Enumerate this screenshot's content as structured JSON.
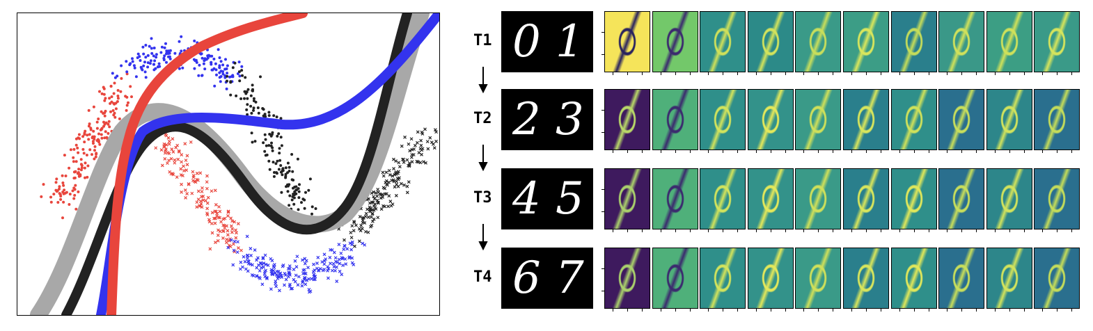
{
  "tasks": [
    {
      "label": "T1",
      "digits": [
        "0",
        "1"
      ],
      "filters": [
        {
          "bg": "#f5e45a",
          "fg": "#2a235e"
        },
        {
          "bg": "#73c86a",
          "fg": "#3b2a6e"
        },
        {
          "bg": "#2f8f8a",
          "fg": "#cfe05a"
        },
        {
          "bg": "#2c8a88",
          "fg": "#d2e35c"
        },
        {
          "bg": "#3a9a88",
          "fg": "#c8de5b"
        },
        {
          "bg": "#3c9d86",
          "fg": "#d9e65c"
        },
        {
          "bg": "#2a7f8c",
          "fg": "#c4dc5a"
        },
        {
          "bg": "#3a9888",
          "fg": "#d0e15b"
        },
        {
          "bg": "#3c9e84",
          "fg": "#cfe15a"
        },
        {
          "bg": "#3a9a88",
          "fg": "#d6e45c"
        }
      ]
    },
    {
      "label": "T2",
      "digits": [
        "2",
        "3"
      ],
      "filters": [
        {
          "bg": "#3e1a5e",
          "fg": "#b9d868"
        },
        {
          "bg": "#4fb07a",
          "fg": "#3b2a6e"
        },
        {
          "bg": "#2f8f8a",
          "fg": "#d2e35c"
        },
        {
          "bg": "#33928a",
          "fg": "#e4e85a"
        },
        {
          "bg": "#3a9a88",
          "fg": "#cfe05a"
        },
        {
          "bg": "#2a7f8c",
          "fg": "#d8e55c"
        },
        {
          "bg": "#2f8f8a",
          "fg": "#cfe15a"
        },
        {
          "bg": "#2a6f8e",
          "fg": "#c8de5b"
        },
        {
          "bg": "#2d868a",
          "fg": "#d2e35c"
        },
        {
          "bg": "#2a6f8e",
          "fg": "#c4dc5a"
        }
      ]
    },
    {
      "label": "T3",
      "digits": [
        "4",
        "5"
      ],
      "filters": [
        {
          "bg": "#3e1a5e",
          "fg": "#aad06c"
        },
        {
          "bg": "#4fb07a",
          "fg": "#3b2a6e"
        },
        {
          "bg": "#2f8f8a",
          "fg": "#d2e35c"
        },
        {
          "bg": "#33928a",
          "fg": "#e4e85a"
        },
        {
          "bg": "#3a9a88",
          "fg": "#cfe05a"
        },
        {
          "bg": "#2a7f8c",
          "fg": "#d8e55c"
        },
        {
          "bg": "#2f8f8a",
          "fg": "#e0e75a"
        },
        {
          "bg": "#2a6f8e",
          "fg": "#c8de5b"
        },
        {
          "bg": "#2d868a",
          "fg": "#d2e35c"
        },
        {
          "bg": "#2a6f8e",
          "fg": "#c4dc5a"
        }
      ]
    },
    {
      "label": "T4",
      "digits": [
        "6",
        "7"
      ],
      "filters": [
        {
          "bg": "#3e1a5e",
          "fg": "#aad06c"
        },
        {
          "bg": "#4fb07a",
          "fg": "#3b2a6e"
        },
        {
          "bg": "#2f8f8a",
          "fg": "#d2e35c"
        },
        {
          "bg": "#33928a",
          "fg": "#e4e85a"
        },
        {
          "bg": "#3a9a88",
          "fg": "#cfe05a"
        },
        {
          "bg": "#2a7f8c",
          "fg": "#d8e55c"
        },
        {
          "bg": "#2f8f8a",
          "fg": "#e0e75a"
        },
        {
          "bg": "#2a6f8e",
          "fg": "#c8de5b"
        },
        {
          "bg": "#2d868a",
          "fg": "#d2e35c"
        },
        {
          "bg": "#2a6f8e",
          "fg": "#c4dc5a"
        }
      ]
    }
  ],
  "colors": {
    "red": "#e8453c",
    "blue": "#3333ee",
    "black": "#222222",
    "gray": "#a8a8a8"
  }
}
